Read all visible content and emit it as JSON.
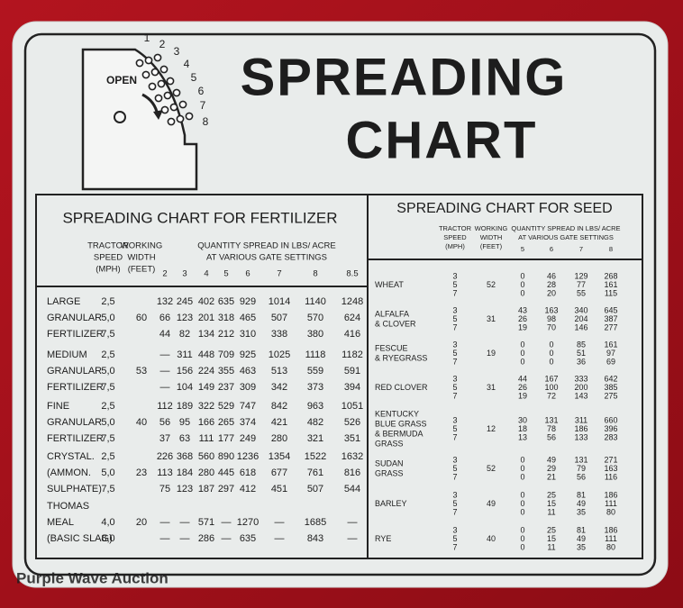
{
  "title": [
    "SPREADING",
    "CHART"
  ],
  "gauge": {
    "label": "OPEN",
    "settings": [
      "1",
      "2",
      "3",
      "4",
      "5",
      "6",
      "7",
      "8"
    ]
  },
  "fertilizer": {
    "title": "SPREADING CHART FOR FERTILIZER",
    "headers": {
      "speed": [
        "TRACTOR",
        "SPEED",
        "(MPH)"
      ],
      "width": [
        "WORKING",
        "WIDTH",
        "(FEET)"
      ],
      "quantity": [
        "QUANTITY SPREAD IN LBS/ ACRE",
        "AT VARIOUS GATE SETTINGS"
      ]
    },
    "gates": [
      "2",
      "3",
      "4",
      "5",
      "6",
      "7",
      "8",
      "8.5"
    ],
    "rows": [
      {
        "material": [
          "LARGE",
          "GRANULAR",
          "FERTILIZER"
        ],
        "width": "60",
        "speeds": [
          "2,5",
          "5,0",
          "7,5"
        ],
        "values": [
          [
            "132",
            "245",
            "402",
            "635",
            "929",
            "1014",
            "1140",
            "1248"
          ],
          [
            "66",
            "123",
            "201",
            "318",
            "465",
            "507",
            "570",
            "624"
          ],
          [
            "44",
            "82",
            "134",
            "212",
            "310",
            "338",
            "380",
            "416"
          ]
        ]
      },
      {
        "material": [
          "MEDIUM",
          "GRANULAR",
          "FERTILIZER"
        ],
        "width": "53",
        "speeds": [
          "2,5",
          "5,0",
          "7,5"
        ],
        "values": [
          [
            "—",
            "311",
            "448",
            "709",
            "925",
            "1025",
            "1118",
            "1182"
          ],
          [
            "—",
            "156",
            "224",
            "355",
            "463",
            "513",
            "559",
            "591"
          ],
          [
            "—",
            "104",
            "149",
            "237",
            "309",
            "342",
            "373",
            "394"
          ]
        ]
      },
      {
        "material": [
          "FINE",
          "GRANULAR",
          "FERTILIZER"
        ],
        "width": "40",
        "speeds": [
          "2,5",
          "5,0",
          "7,5"
        ],
        "values": [
          [
            "112",
            "189",
            "322",
            "529",
            "747",
            "842",
            "963",
            "1051"
          ],
          [
            "56",
            "95",
            "166",
            "265",
            "374",
            "421",
            "482",
            "526"
          ],
          [
            "37",
            "63",
            "111",
            "177",
            "249",
            "280",
            "321",
            "351"
          ]
        ]
      },
      {
        "material": [
          "CRYSTAL.",
          "(AMMON.",
          "SULPHATE)"
        ],
        "width": "23",
        "speeds": [
          "2,5",
          "5,0",
          "7,5"
        ],
        "values": [
          [
            "226",
            "368",
            "560",
            "890",
            "1236",
            "1354",
            "1522",
            "1632"
          ],
          [
            "113",
            "184",
            "280",
            "445",
            "618",
            "677",
            "761",
            "816"
          ],
          [
            "75",
            "123",
            "187",
            "297",
            "412",
            "451",
            "507",
            "544"
          ]
        ]
      },
      {
        "material": [
          "THOMAS",
          "MEAL",
          "(BASIC SLAG)"
        ],
        "width": "20",
        "speeds": [
          "4,0",
          "8,0"
        ],
        "values": [
          [
            "—",
            "—",
            "571",
            "—",
            "1270",
            "—",
            "1685",
            "—"
          ],
          [
            "—",
            "—",
            "286",
            "—",
            "635",
            "—",
            "843",
            "—"
          ]
        ]
      }
    ]
  },
  "seed": {
    "title": "SPREADING CHART FOR SEED",
    "headers": {
      "speed": [
        "TRACTOR",
        "SPEED",
        "(MPH)"
      ],
      "width": [
        "WORKING",
        "WIDTH",
        "(FEET)"
      ],
      "quantity": [
        "QUANTITY SPREAD IN LBS/ ACRE",
        "AT VARIOUS GATE SETTINGS"
      ]
    },
    "gates": [
      "5",
      "6",
      "7",
      "8"
    ],
    "rows": [
      {
        "material": [
          "WHEAT"
        ],
        "width": "52",
        "speeds": [
          "3",
          "5",
          "7"
        ],
        "values": [
          [
            "0",
            "46",
            "129",
            "268"
          ],
          [
            "0",
            "28",
            "77",
            "161"
          ],
          [
            "0",
            "20",
            "55",
            "115"
          ]
        ]
      },
      {
        "material": [
          "ALFALFA",
          "& CLOVER"
        ],
        "width": "31",
        "speeds": [
          "3",
          "5",
          "7"
        ],
        "values": [
          [
            "43",
            "163",
            "340",
            "645"
          ],
          [
            "26",
            "98",
            "204",
            "387"
          ],
          [
            "19",
            "70",
            "146",
            "277"
          ]
        ]
      },
      {
        "material": [
          "FESCUE",
          "& RYEGRASS"
        ],
        "width": "19",
        "speeds": [
          "3",
          "5",
          "7"
        ],
        "values": [
          [
            "0",
            "0",
            "85",
            "161"
          ],
          [
            "0",
            "0",
            "51",
            "97"
          ],
          [
            "0",
            "0",
            "36",
            "69"
          ]
        ]
      },
      {
        "material": [
          "RED CLOVER"
        ],
        "width": "31",
        "speeds": [
          "3",
          "5",
          "7"
        ],
        "values": [
          [
            "44",
            "167",
            "333",
            "642"
          ],
          [
            "26",
            "100",
            "200",
            "385"
          ],
          [
            "19",
            "72",
            "143",
            "275"
          ]
        ]
      },
      {
        "material": [
          "KENTUCKY",
          "BLUE GRASS",
          "& BERMUDA",
          "GRASS"
        ],
        "width": "12",
        "speeds": [
          "3",
          "5",
          "7"
        ],
        "values": [
          [
            "30",
            "131",
            "311",
            "660"
          ],
          [
            "18",
            "78",
            "186",
            "396"
          ],
          [
            "13",
            "56",
            "133",
            "283"
          ]
        ]
      },
      {
        "material": [
          "SUDAN",
          "GRASS"
        ],
        "width": "52",
        "speeds": [
          "3",
          "5",
          "7"
        ],
        "values": [
          [
            "0",
            "49",
            "131",
            "271"
          ],
          [
            "0",
            "29",
            "79",
            "163"
          ],
          [
            "0",
            "21",
            "56",
            "116"
          ]
        ]
      },
      {
        "material": [
          "BARLEY"
        ],
        "width": "49",
        "speeds": [
          "3",
          "5",
          "7"
        ],
        "values": [
          [
            "0",
            "25",
            "81",
            "186"
          ],
          [
            "0",
            "15",
            "49",
            "111"
          ],
          [
            "0",
            "11",
            "35",
            "80"
          ]
        ]
      },
      {
        "material": [
          "RYE"
        ],
        "width": "40",
        "speeds": [
          "3",
          "5",
          "7"
        ],
        "values": [
          [
            "0",
            "25",
            "81",
            "186"
          ],
          [
            "0",
            "15",
            "49",
            "111"
          ],
          [
            "0",
            "11",
            "35",
            "80"
          ]
        ]
      }
    ]
  },
  "watermark": "Purple Wave Auction"
}
